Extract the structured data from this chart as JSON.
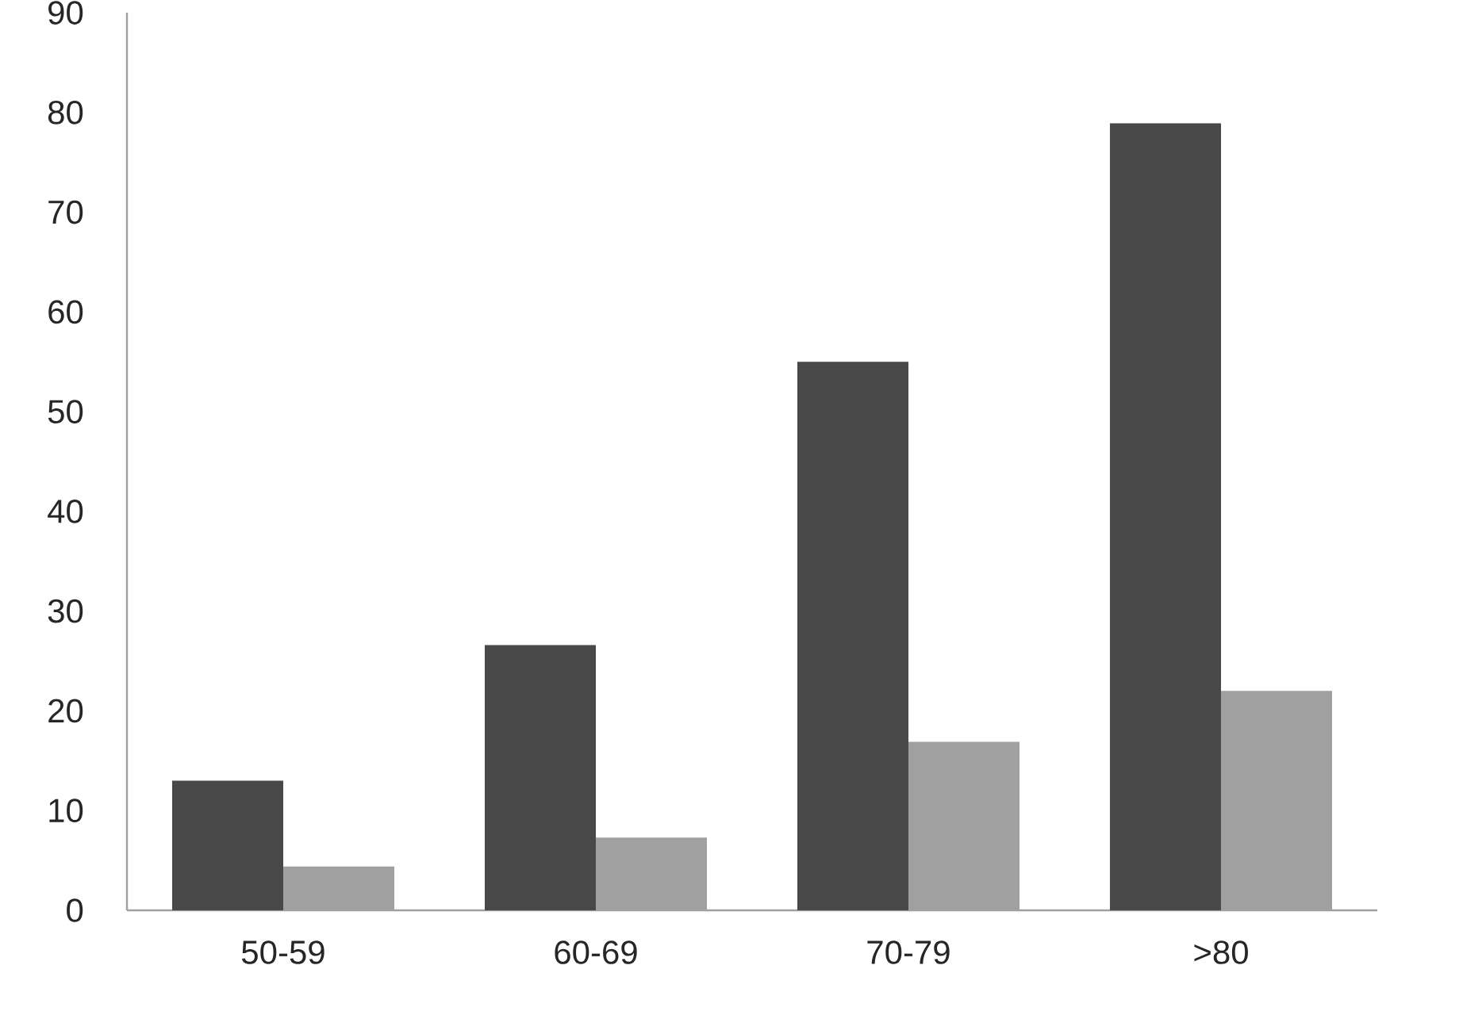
{
  "chart_data": {
    "type": "bar",
    "categories": [
      "50-59",
      "60-69",
      "70-79",
      ">80"
    ],
    "series": [
      {
        "color": "#484848",
        "values": [
          13.0,
          26.6,
          55.0,
          78.9
        ]
      },
      {
        "color": "#a0a0a0",
        "values": [
          4.4,
          7.3,
          16.9,
          22.0
        ]
      }
    ],
    "ylim": [
      0,
      90
    ],
    "yticks": [
      0,
      10,
      20,
      30,
      40,
      50,
      60,
      70,
      80,
      90
    ],
    "grid": false,
    "legend": false
  }
}
